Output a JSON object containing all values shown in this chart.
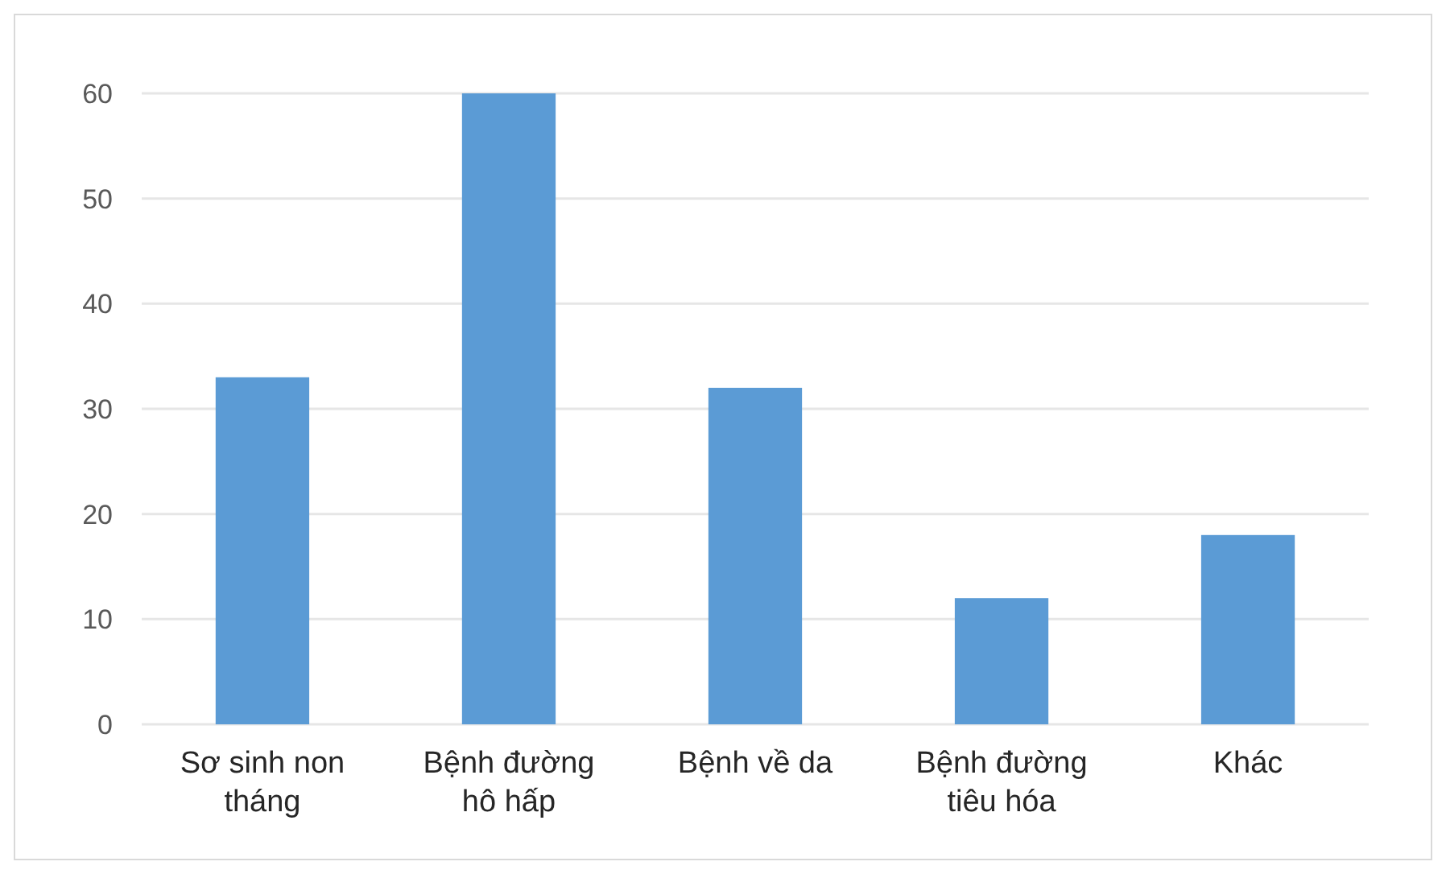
{
  "chart_data": {
    "type": "bar",
    "categories": [
      "Sơ sinh non tháng",
      "Bệnh đường hô hấp",
      "Bệnh về da",
      "Bệnh đường tiêu hóa",
      "Khác"
    ],
    "values": [
      33,
      60,
      32,
      12,
      18
    ],
    "color": "#5b9bd5",
    "ylim": [
      0,
      60
    ],
    "yticks": [
      0,
      10,
      20,
      30,
      40,
      50,
      60
    ],
    "grid": "y"
  }
}
